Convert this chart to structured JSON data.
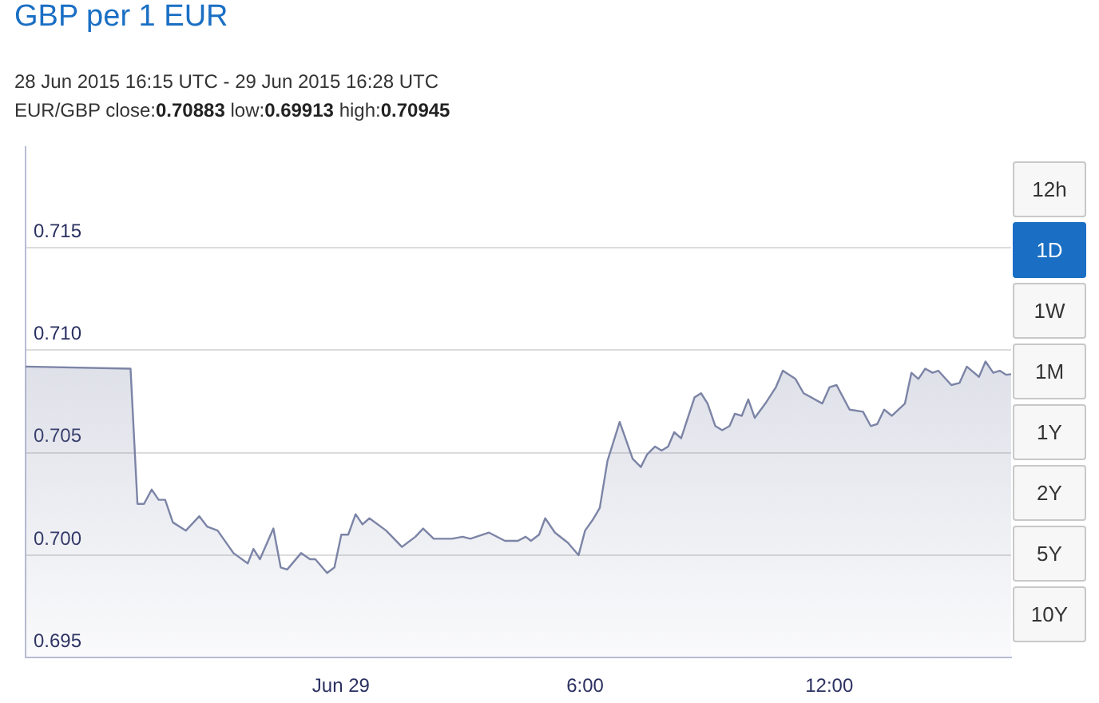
{
  "chart_data": {
    "type": "area",
    "title": "GBP per 1 EUR",
    "subtitle": "28 Jun 2015 16:15 UTC - 29 Jun 2015 16:28 UTC",
    "annotations": [
      "EUR/GBP close:0.70883 low:0.69913 high:0.70945",
      "12h",
      "1D",
      "1W",
      "1M",
      "1Y",
      "2Y",
      "5Y",
      "10Y"
    ],
    "x": [
      -7.75,
      -5.17,
      -5.0,
      -4.84,
      -4.65,
      -4.48,
      -4.32,
      -4.13,
      -3.81,
      -3.48,
      -3.29,
      -3.03,
      -2.64,
      -2.29,
      -2.15,
      -1.99,
      -1.66,
      -1.48,
      -1.32,
      -0.98,
      -0.76,
      -0.63,
      -0.34,
      -0.16,
      0.01,
      0.18,
      0.36,
      0.53,
      0.7,
      1.11,
      1.5,
      1.83,
      2.02,
      2.28,
      2.73,
      2.99,
      3.18,
      3.64,
      4.03,
      4.35,
      4.54,
      4.67,
      4.87,
      5.02,
      5.26,
      5.58,
      5.84,
      6.0,
      6.18,
      6.36,
      6.55,
      6.85,
      7.17,
      7.37,
      7.52,
      7.72,
      7.88,
      8.04,
      8.19,
      8.36,
      8.69,
      8.85,
      9.01,
      9.2,
      9.37,
      9.55,
      9.68,
      9.85,
      10.01,
      10.17,
      10.43,
      10.69,
      10.86,
      11.17,
      11.37,
      11.83,
      12.01,
      12.18,
      12.5,
      12.83,
      13.02,
      13.18,
      13.35,
      13.54,
      13.86,
      14.02,
      14.19,
      14.36,
      14.54,
      14.68,
      15.0,
      15.2,
      15.38,
      15.68,
      15.84,
      16.03,
      16.19,
      16.35,
      16.47
    ],
    "series": [
      {
        "color": "#7c84a6",
        "values": [
          0.7092,
          0.7091,
          0.7025,
          0.7025,
          0.7032,
          0.7027,
          0.7027,
          0.7016,
          0.7012,
          0.7019,
          0.7014,
          0.7012,
          0.7001,
          0.6996,
          0.7003,
          0.6998,
          0.7013,
          0.6994,
          0.6993,
          0.7001,
          0.6998,
          0.6998,
          0.69913,
          0.6994,
          0.701,
          0.701,
          0.702,
          0.7015,
          0.7018,
          0.7012,
          0.7004,
          0.7009,
          0.7013,
          0.7008,
          0.7008,
          0.7009,
          0.7008,
          0.7011,
          0.7007,
          0.7007,
          0.7009,
          0.7007,
          0.701,
          0.7018,
          0.7011,
          0.7006,
          0.7,
          0.7012,
          0.7017,
          0.7023,
          0.7046,
          0.7065,
          0.7047,
          0.7043,
          0.7049,
          0.7053,
          0.7051,
          0.7053,
          0.706,
          0.7057,
          0.7077,
          0.7079,
          0.7074,
          0.7063,
          0.7061,
          0.7063,
          0.7069,
          0.7068,
          0.7076,
          0.7067,
          0.7074,
          0.7082,
          0.709,
          0.7086,
          0.7079,
          0.7074,
          0.7082,
          0.7083,
          0.7071,
          0.707,
          0.7063,
          0.7064,
          0.7071,
          0.7068,
          0.7074,
          0.7089,
          0.7086,
          0.7091,
          0.7089,
          0.709,
          0.7083,
          0.7084,
          0.7092,
          0.7087,
          0.70945,
          0.7089,
          0.709,
          0.7088,
          0.70883
        ]
      }
    ],
    "xlim": [
      -7.75,
      16.47
    ],
    "ylim": [
      0.695,
      0.7199
    ],
    "xticks": [
      {
        "value": 0,
        "label": "Jun 29"
      },
      {
        "value": 6,
        "label": "6:00"
      },
      {
        "value": 12,
        "label": "12:00"
      }
    ],
    "yticks": [
      0.695,
      {
        "value": 0.7,
        "label": "0.700"
      },
      0.705,
      {
        "value": 0.71,
        "label": "0.710"
      },
      0.715
    ],
    "grid": "y",
    "marker": "none",
    "line_style": "solid"
  }
}
